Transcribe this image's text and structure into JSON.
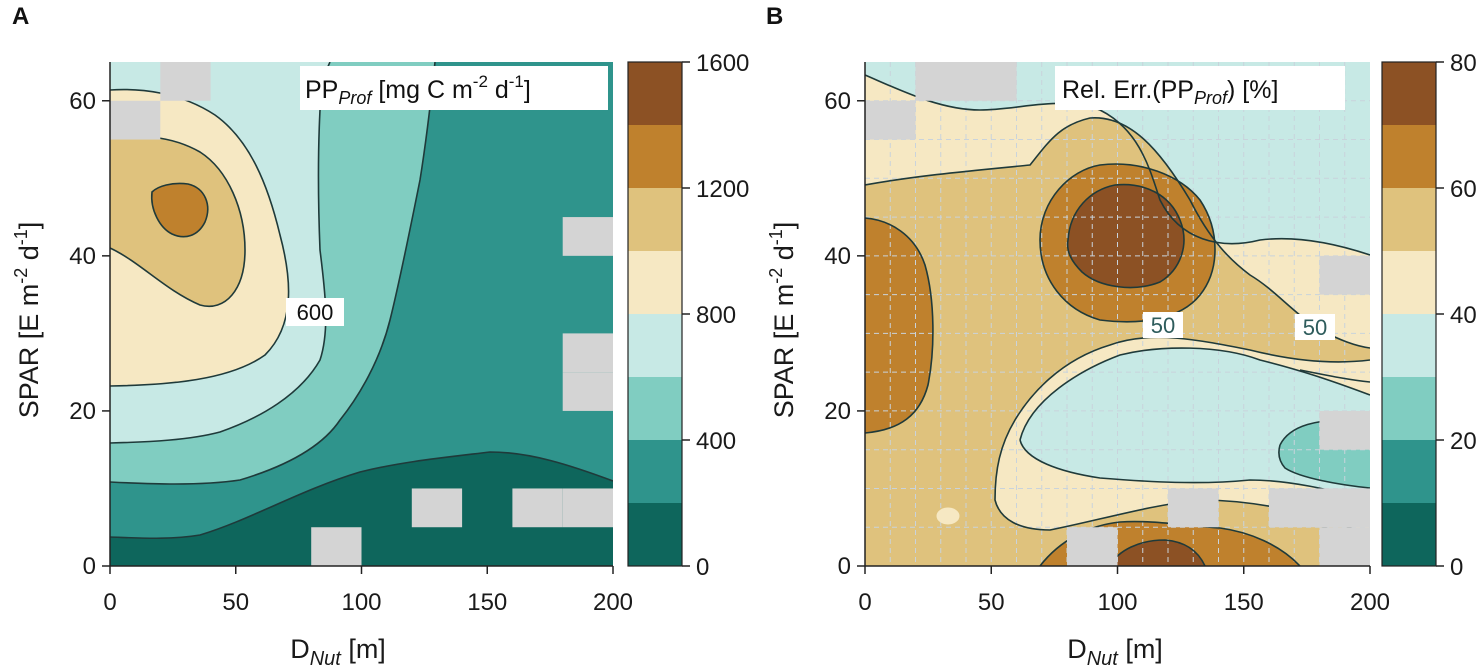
{
  "colors": {
    "band0": "#0e665c",
    "band1": "#2f948c",
    "band2": "#80cdc1",
    "band3": "#c7e9e5",
    "band4": "#f6e8c3",
    "band5": "#dfc27d",
    "band6": "#bf812d",
    "band7": "#8c5124",
    "missing": "#d4d4d4",
    "contour": "#1f3a3a"
  },
  "chart_data": [
    {
      "type": "heatmap",
      "panel_letter": "A",
      "legend_text": {
        "base": "PP",
        "sub": "Prof",
        "rest": " [mg C m",
        "sup1": "-2",
        "mid": " d",
        "sup2": "-1",
        "end": "]"
      },
      "xlabel": {
        "base": "D",
        "sub": "Nut",
        "rest": " [m]"
      },
      "ylabel": {
        "base": "SPAR [E m",
        "sup1": "-2",
        "mid": " d",
        "sup2": "-1",
        "end": "]"
      },
      "xlim": [
        0,
        200
      ],
      "ylim": [
        0,
        65
      ],
      "x_ticks": [
        "0",
        "50",
        "100",
        "150",
        "200"
      ],
      "y_ticks": [
        "0",
        "20",
        "40",
        "60"
      ],
      "colorbar": {
        "range": [
          0,
          1600
        ],
        "levels": [
          0,
          200,
          400,
          600,
          800,
          1000,
          1200,
          1400,
          1600
        ],
        "tick_labels": [
          "0",
          "400",
          "800",
          "1200",
          "1600"
        ]
      },
      "contour_labels": [
        {
          "text": "600",
          "x": 82,
          "y": 32
        }
      ],
      "missing_cells": [
        [
          20,
          60
        ],
        [
          0,
          55
        ],
        [
          180,
          40
        ],
        [
          180,
          20
        ],
        [
          180,
          25
        ],
        [
          120,
          5
        ],
        [
          160,
          5
        ],
        [
          180,
          5
        ],
        [
          80,
          0
        ]
      ]
    },
    {
      "type": "heatmap",
      "panel_letter": "B",
      "legend_text": {
        "base": "Rel. Err.(PP",
        "sub": "Prof",
        "end": ") [%]"
      },
      "xlabel": {
        "base": "D",
        "sub": "Nut",
        "rest": " [m]"
      },
      "ylabel": {
        "base": "SPAR [E m",
        "sup1": "-2",
        "mid": " d",
        "sup2": "-1",
        "end": "]"
      },
      "xlim": [
        0,
        200
      ],
      "ylim": [
        0,
        65
      ],
      "x_ticks": [
        "0",
        "50",
        "100",
        "150",
        "200"
      ],
      "y_ticks": [
        "0",
        "20",
        "40",
        "60"
      ],
      "colorbar": {
        "range": [
          0,
          80
        ],
        "levels": [
          0,
          10,
          20,
          30,
          40,
          50,
          60,
          70,
          80
        ],
        "tick_labels": [
          "0",
          "20",
          "40",
          "60",
          "80"
        ]
      },
      "contour_labels": [
        {
          "text": "50",
          "x": 115,
          "y": 31
        },
        {
          "text": "50",
          "x": 178,
          "y": 31
        }
      ],
      "grid": true,
      "missing_cells": [
        [
          20,
          60
        ],
        [
          0,
          55
        ],
        [
          40,
          60
        ],
        [
          180,
          35
        ],
        [
          180,
          15
        ],
        [
          120,
          5
        ],
        [
          160,
          5
        ],
        [
          180,
          5
        ],
        [
          180,
          0
        ],
        [
          80,
          0
        ]
      ]
    }
  ]
}
